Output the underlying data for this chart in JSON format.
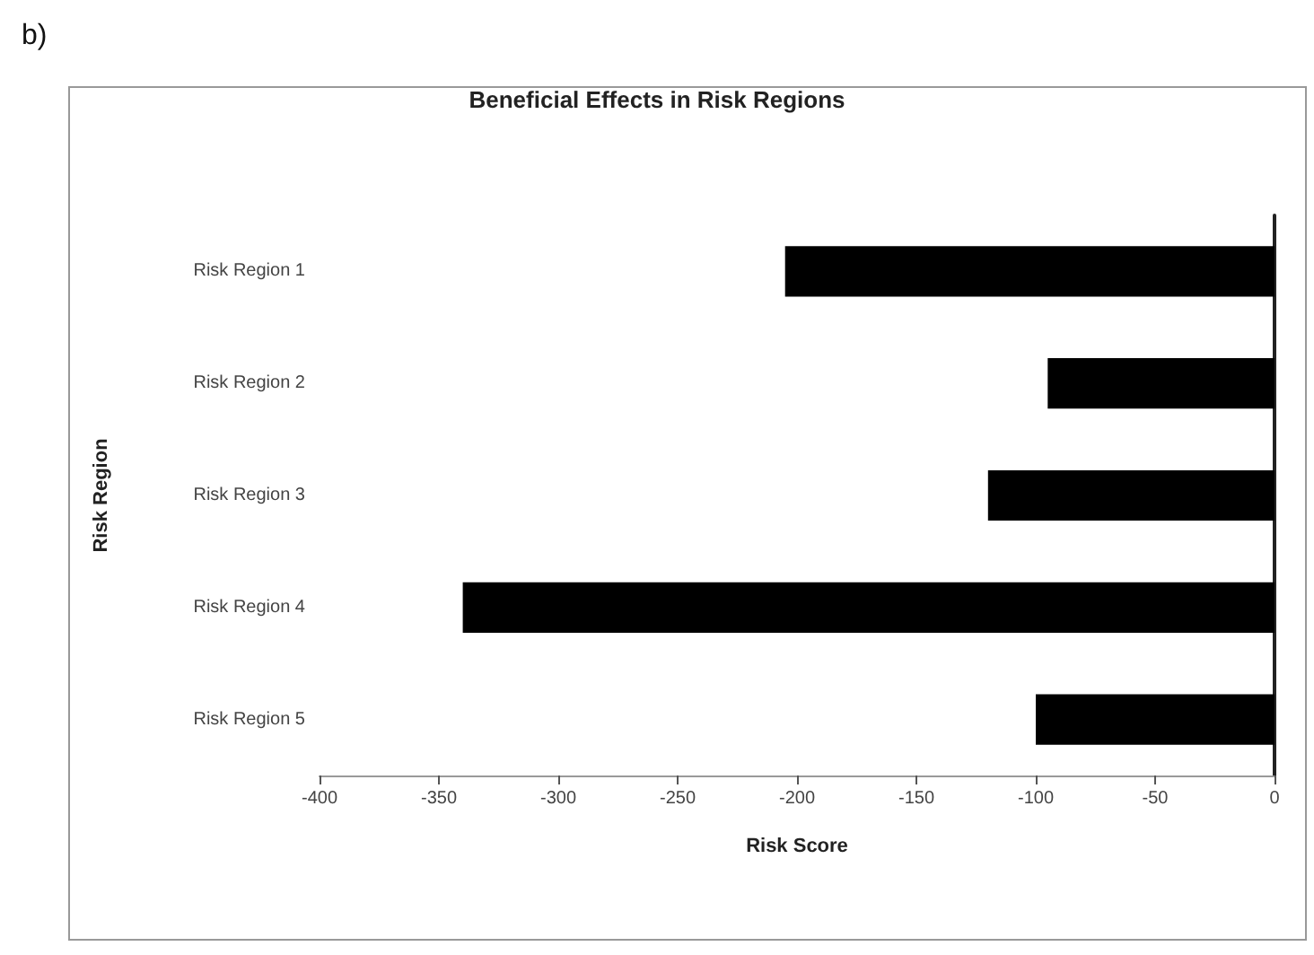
{
  "chart_data": {
    "type": "bar",
    "orientation": "horizontal",
    "title": "Beneficial Effects in Risk Regions",
    "xlabel": "Risk Score",
    "ylabel": "Risk Region",
    "annotations": [
      "b)"
    ],
    "categories": [
      "Risk Region 1",
      "Risk Region 2",
      "Risk Region 3",
      "Risk Region 4",
      "Risk Region 5"
    ],
    "values": [
      -205,
      -95,
      -120,
      -340,
      -100
    ],
    "color": "#000000",
    "xlim": [
      -400,
      0
    ],
    "xticks": [
      -400,
      -350,
      -300,
      -250,
      -200,
      -150,
      -100,
      -50,
      0
    ],
    "grid": false
  }
}
